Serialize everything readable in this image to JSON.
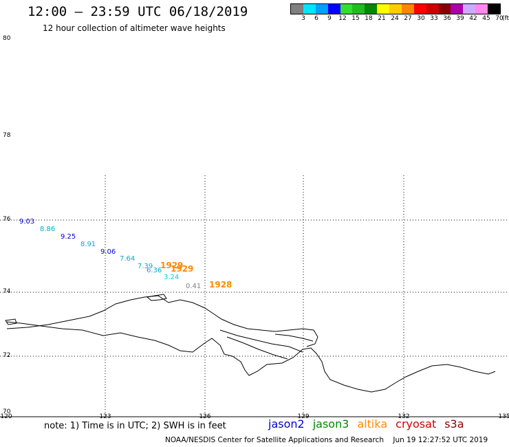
{
  "header": {
    "title": "12:00 – 23:59 UTC 06/18/2019",
    "subtitle": "12 hour collection of altimeter wave heights"
  },
  "legend": {
    "colors": [
      "#808080",
      "#00e5ff",
      "#00a0ff",
      "#0000ff",
      "#33dd33",
      "#22bb22",
      "#008800",
      "#ffff00",
      "#ffcc00",
      "#ff8800",
      "#ff0000",
      "#cc0000",
      "#880000",
      "#aa00aa",
      "#ccaaff",
      "#ff88ee",
      "#000000"
    ],
    "labels": [
      "3",
      "6",
      "9",
      "12",
      "15",
      "18",
      "21",
      "24",
      "27",
      "30",
      "33",
      "36",
      "39",
      "42",
      "45",
      "70"
    ],
    "unit": "(ft)"
  },
  "axes": {
    "lat_labels": [
      "80",
      "78",
      "76",
      "74",
      "72",
      "70"
    ],
    "lon_labels": [
      "120",
      "123",
      "126",
      "129",
      "132",
      "135"
    ]
  },
  "observations": [
    {
      "text": "9.03",
      "color": "#0000cc"
    },
    {
      "text": "8.86",
      "color": "#00aacc"
    },
    {
      "text": "9.25",
      "color": "#0000cc"
    },
    {
      "text": "8.91",
      "color": "#00aacc"
    },
    {
      "text": "9.06",
      "color": "#0000cc"
    },
    {
      "text": "7.64",
      "color": "#00aacc"
    },
    {
      "text": "7.39",
      "color": "#00aacc"
    },
    {
      "text": "6.36",
      "color": "#00aacc"
    },
    {
      "text": "3.24",
      "color": "#00ccee"
    },
    {
      "text": "0.41",
      "color": "#808080"
    }
  ],
  "times": [
    {
      "text": "1929",
      "color": "#ff8800"
    },
    {
      "text": "1929",
      "color": "#ff8800"
    },
    {
      "text": "1928",
      "color": "#ff8800"
    }
  ],
  "footer": {
    "note": "note: 1) Time is in UTC; 2) SWH is in feet",
    "satellites": [
      {
        "name": "jason2",
        "color": "#0000cc"
      },
      {
        "name": "jason3",
        "color": "#008800"
      },
      {
        "name": "altika",
        "color": "#ff8800"
      },
      {
        "name": "cryosat",
        "color": "#cc0000"
      },
      {
        "name": "s3a",
        "color": "#880000"
      }
    ],
    "credit": "NOAA/NESDIS Center for Satellite Applications and Research",
    "timestamp": "Jun 19 12:27:52 UTC 2019"
  }
}
